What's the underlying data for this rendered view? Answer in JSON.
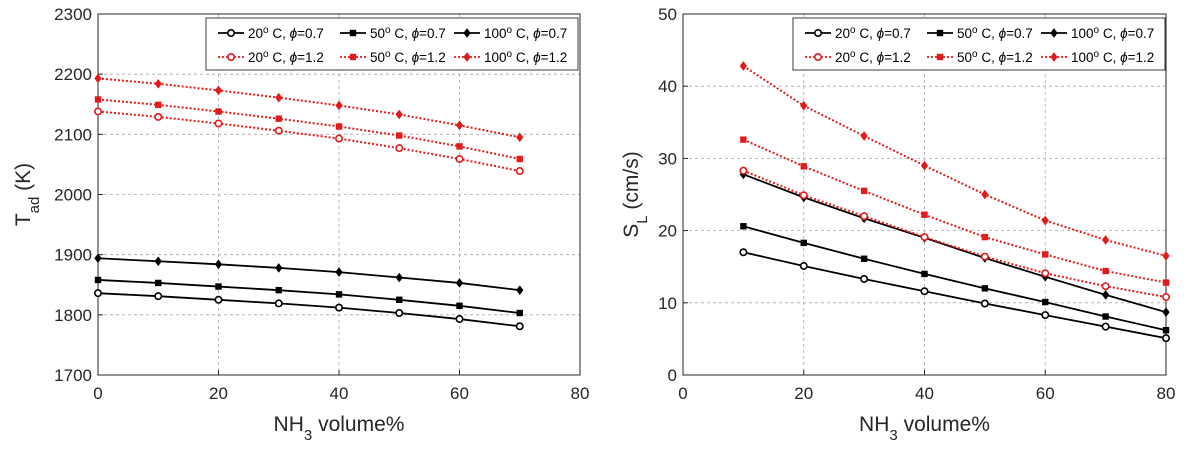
{
  "chart_data": [
    {
      "type": "line",
      "title": "",
      "xlabel": "NH3 volume%",
      "xlabel_main": "NH",
      "xlabel_sub": "3",
      "xlabel_rest": " volume%",
      "ylabel": "Tad (K)",
      "ylabel_main": "T",
      "ylabel_sub": "ad",
      "ylabel_rest": " (K)",
      "xlim": [
        0,
        80
      ],
      "ylim": [
        1700,
        2300
      ],
      "xticks": [
        0,
        20,
        40,
        60,
        80
      ],
      "yticks": [
        1700,
        1800,
        1900,
        2000,
        2100,
        2200,
        2300
      ],
      "grid": true,
      "legend_position": "top-right",
      "x": [
        0,
        10,
        20,
        30,
        40,
        50,
        60,
        70
      ],
      "series": [
        {
          "name": "20° C, ϕ=0.7",
          "temp": "20",
          "phi": "0.7",
          "color": "#000000",
          "style": "solid",
          "marker": "circle",
          "values": [
            1836,
            1831,
            1825,
            1819,
            1812,
            1803,
            1793,
            1781
          ]
        },
        {
          "name": "50° C, ϕ=0.7",
          "temp": "50",
          "phi": "0.7",
          "color": "#000000",
          "style": "solid",
          "marker": "square",
          "values": [
            1858,
            1853,
            1847,
            1841,
            1834,
            1825,
            1815,
            1803
          ]
        },
        {
          "name": "100° C, ϕ=0.7",
          "temp": "100",
          "phi": "0.7",
          "color": "#000000",
          "style": "solid",
          "marker": "diamond",
          "values": [
            1894,
            1889,
            1884,
            1878,
            1871,
            1862,
            1853,
            1841
          ]
        },
        {
          "name": "20° C, ϕ=1.2",
          "temp": "20",
          "phi": "1.2",
          "color": "#e31a1c",
          "style": "dotted",
          "marker": "circle",
          "values": [
            2138,
            2129,
            2118,
            2106,
            2093,
            2077,
            2059,
            2039
          ]
        },
        {
          "name": "50° C, ϕ=1.2",
          "temp": "50",
          "phi": "1.2",
          "color": "#e31a1c",
          "style": "dotted",
          "marker": "square",
          "values": [
            2158,
            2149,
            2138,
            2126,
            2113,
            2098,
            2080,
            2059
          ]
        },
        {
          "name": "100° C, ϕ=1.2",
          "temp": "100",
          "phi": "1.2",
          "color": "#e31a1c",
          "style": "dotted",
          "marker": "diamond",
          "values": [
            2193,
            2184,
            2173,
            2161,
            2148,
            2133,
            2115,
            2095
          ]
        }
      ]
    },
    {
      "type": "line",
      "title": "",
      "xlabel": "NH3 volume%",
      "xlabel_main": "NH",
      "xlabel_sub": "3",
      "xlabel_rest": " volume%",
      "ylabel": "SL (cm/s)",
      "ylabel_main": "S",
      "ylabel_sub": "L",
      "ylabel_rest": " (cm/s)",
      "xlim": [
        0,
        80
      ],
      "ylim": [
        0,
        50
      ],
      "xticks": [
        0,
        20,
        40,
        60,
        80
      ],
      "yticks": [
        0,
        10,
        20,
        30,
        40,
        50
      ],
      "grid": true,
      "legend_position": "top-right",
      "x": [
        10,
        20,
        30,
        40,
        50,
        60,
        70,
        80
      ],
      "series": [
        {
          "name": "20° C, ϕ=0.7",
          "temp": "20",
          "phi": "0.7",
          "color": "#000000",
          "style": "solid",
          "marker": "circle",
          "values": [
            17.0,
            15.1,
            13.3,
            11.6,
            9.9,
            8.3,
            6.7,
            5.1
          ]
        },
        {
          "name": "50° C, ϕ=0.7",
          "temp": "50",
          "phi": "0.7",
          "color": "#000000",
          "style": "solid",
          "marker": "square",
          "values": [
            20.6,
            18.3,
            16.1,
            14.0,
            12.0,
            10.1,
            8.1,
            6.2
          ]
        },
        {
          "name": "100° C, ϕ=0.7",
          "temp": "100",
          "phi": "0.7",
          "color": "#000000",
          "style": "solid",
          "marker": "diamond",
          "values": [
            27.8,
            24.6,
            21.7,
            19.0,
            16.2,
            13.6,
            11.1,
            8.7
          ]
        },
        {
          "name": "20° C, ϕ=1.2",
          "temp": "20",
          "phi": "1.2",
          "color": "#e31a1c",
          "style": "dotted",
          "marker": "circle",
          "values": [
            28.3,
            24.9,
            22.0,
            19.1,
            16.4,
            14.1,
            12.3,
            10.8
          ]
        },
        {
          "name": "50° C, ϕ=1.2",
          "temp": "50",
          "phi": "1.2",
          "color": "#e31a1c",
          "style": "dotted",
          "marker": "square",
          "values": [
            32.6,
            28.9,
            25.5,
            22.2,
            19.1,
            16.7,
            14.4,
            12.8
          ]
        },
        {
          "name": "100° C, ϕ=1.2",
          "temp": "100",
          "phi": "1.2",
          "color": "#e31a1c",
          "style": "dotted",
          "marker": "diamond",
          "values": [
            42.8,
            37.3,
            33.1,
            29.0,
            25.0,
            21.4,
            18.7,
            16.5
          ]
        }
      ]
    }
  ]
}
